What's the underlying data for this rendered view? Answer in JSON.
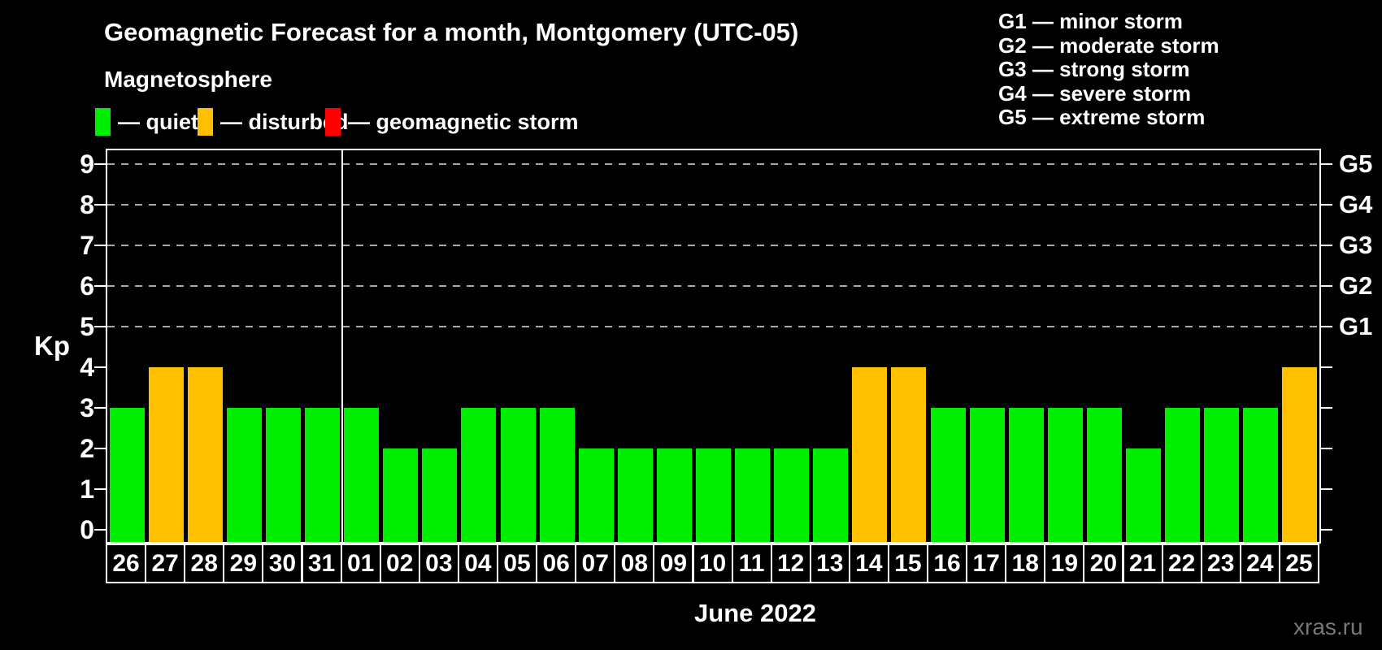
{
  "header": {
    "title": "Geomagnetic Forecast for a month, Montgomery (UTC-05)",
    "subtitle": "Magnetosphere"
  },
  "kp_legend": {
    "items": [
      {
        "label": "— quiet",
        "status": "quiet",
        "color": "#00ee00"
      },
      {
        "label": "— disturbed",
        "status": "disturbed",
        "color": "#ffc000"
      },
      {
        "label": "— geomagnetic storm",
        "status": "storm",
        "color": "#ff0000"
      }
    ]
  },
  "g_scale_legend": {
    "lines": [
      "G1 — minor storm",
      "G2 — moderate storm",
      "G3 — strong storm",
      "G4 — severe storm",
      "G5 — extreme storm"
    ]
  },
  "watermark": "xras.ru",
  "chart_data": {
    "type": "bar",
    "title": "Geomagnetic Forecast for a month, Montgomery (UTC-05)",
    "ylabel": "Kp",
    "xlabel": "June 2022",
    "ylim": [
      0,
      9
    ],
    "yticks": [
      0,
      1,
      2,
      3,
      4,
      5,
      6,
      7,
      8,
      9
    ],
    "gridlines_at_kp": [
      5,
      6,
      7,
      8,
      9
    ],
    "g_levels": [
      {
        "kp": 5,
        "label": "G1"
      },
      {
        "kp": 6,
        "label": "G2"
      },
      {
        "kp": 7,
        "label": "G3"
      },
      {
        "kp": 8,
        "label": "G4"
      },
      {
        "kp": 9,
        "label": "G5"
      }
    ],
    "status_colors": {
      "quiet": "#00ee00",
      "disturbed": "#ffc000",
      "storm": "#ff0000"
    },
    "month_separator_after_index": 5,
    "bars": [
      {
        "day": "26",
        "kp": 3,
        "status": "quiet"
      },
      {
        "day": "27",
        "kp": 4,
        "status": "disturbed"
      },
      {
        "day": "28",
        "kp": 4,
        "status": "disturbed"
      },
      {
        "day": "29",
        "kp": 3,
        "status": "quiet"
      },
      {
        "day": "30",
        "kp": 3,
        "status": "quiet"
      },
      {
        "day": "31",
        "kp": 3,
        "status": "quiet"
      },
      {
        "day": "01",
        "kp": 3,
        "status": "quiet"
      },
      {
        "day": "02",
        "kp": 2,
        "status": "quiet"
      },
      {
        "day": "03",
        "kp": 2,
        "status": "quiet"
      },
      {
        "day": "04",
        "kp": 3,
        "status": "quiet"
      },
      {
        "day": "05",
        "kp": 3,
        "status": "quiet"
      },
      {
        "day": "06",
        "kp": 3,
        "status": "quiet"
      },
      {
        "day": "07",
        "kp": 2,
        "status": "quiet"
      },
      {
        "day": "08",
        "kp": 2,
        "status": "quiet"
      },
      {
        "day": "09",
        "kp": 2,
        "status": "quiet"
      },
      {
        "day": "10",
        "kp": 2,
        "status": "quiet"
      },
      {
        "day": "11",
        "kp": 2,
        "status": "quiet"
      },
      {
        "day": "12",
        "kp": 2,
        "status": "quiet"
      },
      {
        "day": "13",
        "kp": 2,
        "status": "quiet"
      },
      {
        "day": "14",
        "kp": 4,
        "status": "disturbed"
      },
      {
        "day": "15",
        "kp": 4,
        "status": "disturbed"
      },
      {
        "day": "16",
        "kp": 3,
        "status": "quiet"
      },
      {
        "day": "17",
        "kp": 3,
        "status": "quiet"
      },
      {
        "day": "18",
        "kp": 3,
        "status": "quiet"
      },
      {
        "day": "19",
        "kp": 3,
        "status": "quiet"
      },
      {
        "day": "20",
        "kp": 3,
        "status": "quiet"
      },
      {
        "day": "21",
        "kp": 2,
        "status": "quiet"
      },
      {
        "day": "22",
        "kp": 3,
        "status": "quiet"
      },
      {
        "day": "23",
        "kp": 3,
        "status": "quiet"
      },
      {
        "day": "24",
        "kp": 3,
        "status": "quiet"
      },
      {
        "day": "25",
        "kp": 4,
        "status": "disturbed"
      }
    ]
  }
}
